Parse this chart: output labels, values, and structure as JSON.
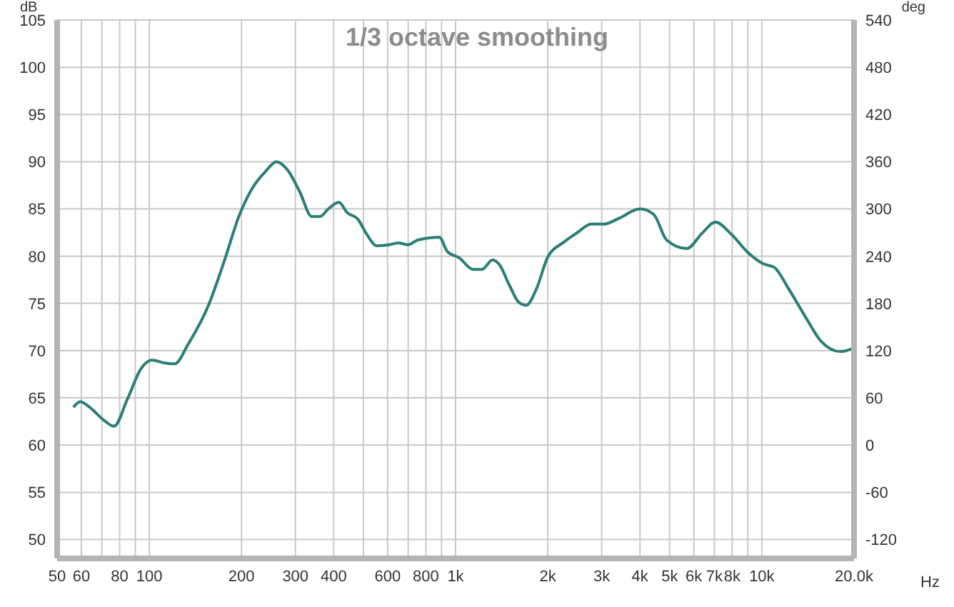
{
  "chart_data": {
    "type": "line",
    "title": "1/3 octave smoothing",
    "xlabel": "Hz",
    "ylabel": "dB",
    "y2label": "deg",
    "log": "x",
    "grid": true,
    "line_style": "solid",
    "marker": "none",
    "x": [
      56.5,
      59.5,
      63.9,
      70.7,
      76.7,
      84.9,
      94,
      102,
      112,
      121,
      134,
      156,
      177,
      196,
      217,
      240,
      260,
      283,
      310,
      339,
      361,
      384,
      416,
      443,
      480,
      511,
      553,
      606,
      651,
      700,
      751,
      885,
      940,
      1030,
      1140,
      1220,
      1320,
      1390,
      1500,
      1610,
      1700,
      1840,
      2000,
      2260,
      2500,
      2770,
      3060,
      3410,
      4000,
      4440,
      4890,
      5690,
      6370,
      7050,
      7960,
      9000,
      10100,
      11000,
      12200,
      14100,
      15600,
      18100,
      20000
    ],
    "series": [
      {
        "color": "#2a7f74",
        "values": [
          64.0,
          64.6,
          64.0,
          62.7,
          62.0,
          64.9,
          68.1,
          69.0,
          68.7,
          68.6,
          70.7,
          74.8,
          79.8,
          84.2,
          87.2,
          89.0,
          90.0,
          89.1,
          86.8,
          84.2,
          84.2,
          85.0,
          85.7,
          84.6,
          83.9,
          82.4,
          81.1,
          81.2,
          81.4,
          81.2,
          81.7,
          82.0,
          80.5,
          79.8,
          78.6,
          78.6,
          79.6,
          79.1,
          76.9,
          75.1,
          74.8,
          76.6,
          79.9,
          81.5,
          82.5,
          83.4,
          83.4,
          84.0,
          85.0,
          84.4,
          81.7,
          80.8,
          82.4,
          83.6,
          82.3,
          80.4,
          79.2,
          78.8,
          76.6,
          73.2,
          71.0,
          69.9,
          70.3
        ]
      }
    ],
    "xlim": [
      50,
      20000
    ],
    "xticks": [
      50,
      60,
      {
        "value": 70,
        "label": null
      },
      80,
      {
        "value": 90,
        "label": null
      },
      100,
      200,
      300,
      400,
      {
        "value": 500,
        "label": null
      },
      600,
      {
        "value": 700,
        "label": null
      },
      800,
      {
        "value": 900,
        "label": null
      },
      {
        "value": 1000,
        "label": "1k"
      },
      {
        "value": 2000,
        "label": "2k"
      },
      {
        "value": 3000,
        "label": "3k"
      },
      {
        "value": 4000,
        "label": "4k"
      },
      {
        "value": 5000,
        "label": "5k"
      },
      {
        "value": 6000,
        "label": "6k"
      },
      {
        "value": 7000,
        "label": "7k"
      },
      {
        "value": 8000,
        "label": "8k"
      },
      {
        "value": 9000,
        "label": null
      },
      {
        "value": 10000,
        "label": "10k"
      },
      {
        "value": 20000,
        "label": "20.0k"
      }
    ],
    "ylim": [
      48,
      105
    ],
    "yticks": [
      50,
      55,
      60,
      65,
      70,
      75,
      80,
      85,
      90,
      95,
      100,
      105
    ],
    "y2lim": [
      -144,
      540
    ],
    "y2ticks": [
      -120,
      -60,
      0,
      60,
      120,
      180,
      240,
      300,
      360,
      420,
      480,
      540
    ]
  }
}
